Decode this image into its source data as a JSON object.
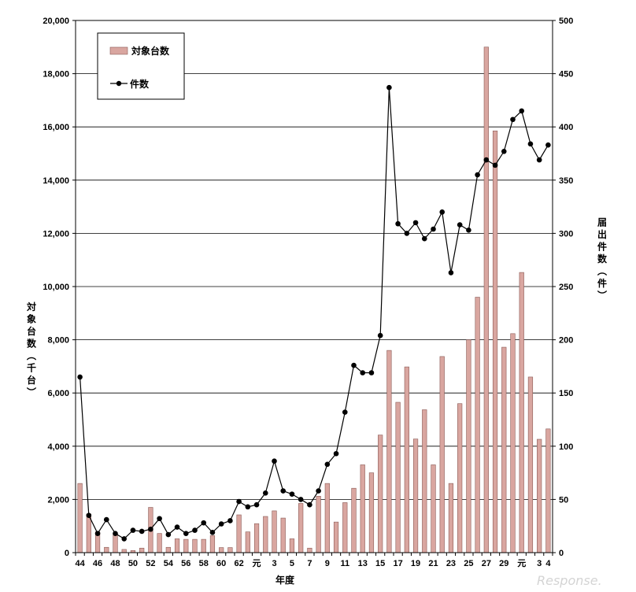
{
  "chart_data": {
    "type": "bar+line",
    "xlabel": "年度",
    "ylabel_left": "対象台数（千台）",
    "ylabel_right": "届出件数（件）",
    "ylim_left": [
      0,
      20000
    ],
    "ylim_right": [
      0,
      500
    ],
    "yticks_left": [
      "0",
      "2,000",
      "4,000",
      "6,000",
      "8,000",
      "10,000",
      "12,000",
      "14,000",
      "16,000",
      "18,000",
      "20,000"
    ],
    "yticks_right": [
      "0",
      "50",
      "100",
      "150",
      "200",
      "250",
      "300",
      "350",
      "400",
      "450",
      "500"
    ],
    "grid": true,
    "legend_position": "top-left",
    "categories": [
      "44",
      "45",
      "46",
      "47",
      "48",
      "49",
      "50",
      "51",
      "52",
      "53",
      "54",
      "55",
      "56",
      "57",
      "58",
      "59",
      "60",
      "61",
      "62",
      "63",
      "元",
      "2",
      "3",
      "4",
      "5",
      "6",
      "7",
      "8",
      "9",
      "10",
      "11",
      "12",
      "13",
      "14",
      "15",
      "16",
      "17",
      "18",
      "19",
      "20",
      "21",
      "22",
      "23",
      "24",
      "25",
      "26",
      "27",
      "28",
      "29",
      "30",
      "元",
      "2",
      "3",
      "4"
    ],
    "xtick_labels": [
      "44",
      "",
      "46",
      "",
      "48",
      "",
      "50",
      "",
      "52",
      "",
      "54",
      "",
      "56",
      "",
      "58",
      "",
      "60",
      "",
      "62",
      "",
      "元",
      "",
      "3",
      "",
      "5",
      "",
      "7",
      "",
      "9",
      "",
      "11",
      "",
      "13",
      "",
      "15",
      "",
      "17",
      "",
      "19",
      "",
      "21",
      "",
      "23",
      "",
      "25",
      "",
      "27",
      "",
      "29",
      "",
      "元",
      "",
      "3",
      "4"
    ],
    "series": [
      {
        "name": "対象台数",
        "type": "bar",
        "axis": "left",
        "color": "#d9a6a0",
        "values": [
          2600,
          1450,
          780,
          200,
          700,
          120,
          80,
          170,
          1700,
          720,
          200,
          520,
          500,
          500,
          500,
          640,
          190,
          190,
          1420,
          780,
          1090,
          1360,
          1570,
          1300,
          520,
          1850,
          170,
          2120,
          2600,
          1150,
          1880,
          2420,
          3300,
          3000,
          4420,
          7600,
          5650,
          6980,
          4270,
          5370,
          3300,
          7370,
          2600,
          5600,
          8000,
          9600,
          19000,
          15850,
          7720,
          8230,
          10530,
          6600,
          4260,
          4650
        ]
      },
      {
        "name": "件数",
        "type": "line",
        "axis": "right",
        "color": "#000000",
        "values": [
          165,
          35,
          18,
          31,
          18,
          13,
          21,
          20,
          22,
          32,
          17,
          24,
          18,
          21,
          28,
          19,
          27,
          30,
          48,
          43,
          45,
          56,
          86,
          58,
          55,
          50,
          45,
          58,
          83,
          93,
          132,
          176,
          169,
          169,
          204,
          437,
          309,
          300,
          310,
          295,
          304,
          320,
          263,
          308,
          303,
          355,
          369,
          364,
          377,
          407,
          415,
          384,
          369,
          383
        ]
      }
    ]
  },
  "watermark": "Response."
}
